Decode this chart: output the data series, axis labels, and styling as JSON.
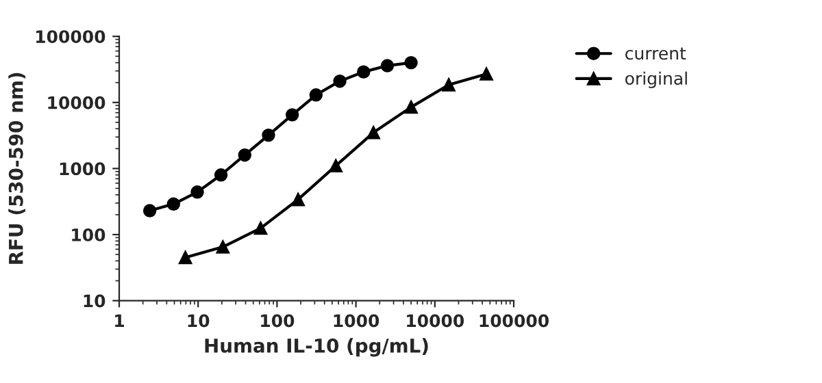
{
  "chart_data": {
    "type": "line",
    "xlabel": "Human IL-10 (pg/mL)",
    "ylabel": "RFU (530-590 nm)",
    "log": "xy",
    "xlim": [
      1,
      100000
    ],
    "ylim": [
      10,
      100000
    ],
    "xticks": [
      1,
      10,
      100,
      1000,
      10000,
      100000
    ],
    "yticks": [
      10,
      100,
      1000,
      10000,
      100000
    ],
    "grid": false,
    "legend": "top right",
    "series": [
      {
        "name": "current",
        "color": "#000000",
        "marker": "circle",
        "x": [
          2.44,
          4.88,
          9.77,
          19.5,
          39,
          78,
          156,
          312,
          625,
          1250,
          2500,
          5000
        ],
        "values": [
          230,
          290,
          440,
          800,
          1600,
          3200,
          6500,
          13000,
          21000,
          29000,
          36000,
          40000
        ]
      },
      {
        "name": "original",
        "color": "#000000",
        "marker": "triangle",
        "x": [
          6.9,
          20.6,
          62,
          185,
          556,
          1667,
          5000,
          15000,
          45000
        ],
        "values": [
          45,
          65,
          125,
          340,
          1100,
          3500,
          8500,
          18500,
          27000
        ]
      }
    ]
  }
}
